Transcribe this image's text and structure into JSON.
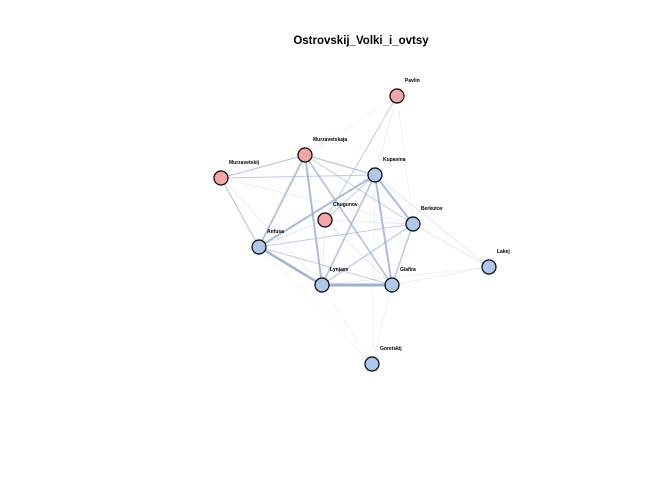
{
  "title": "Ostrovskij_Volki_i_ovtsy",
  "colors": {
    "female_node": "#f4a6a6",
    "male_node": "#adc8ea",
    "edge": "#9cb0d4",
    "edge_light": "#c8cfe0"
  },
  "nodes": [
    {
      "id": "Pavlin",
      "label": "Pavlin",
      "group": "female"
    },
    {
      "id": "Murzavetskaja",
      "label": "Murzavetskaja",
      "group": "female"
    },
    {
      "id": "Murzavetskij",
      "label": "Murzavetskij",
      "group": "female"
    },
    {
      "id": "Kupavina",
      "label": "Kupavina",
      "group": "male"
    },
    {
      "id": "Chugunov",
      "label": "Chugunov",
      "group": "female"
    },
    {
      "id": "Berkutov",
      "label": "Berkutov",
      "group": "male"
    },
    {
      "id": "Anfusa",
      "label": "Anfusa",
      "group": "male"
    },
    {
      "id": "Lakej",
      "label": "Lakej",
      "group": "male"
    },
    {
      "id": "Lynjaev",
      "label": "Lynjaev",
      "group": "male"
    },
    {
      "id": "Glafira",
      "label": "Glafira",
      "group": "male"
    },
    {
      "id": "Goretskij",
      "label": "Goretskij",
      "group": "male"
    }
  ],
  "edges": [
    {
      "source": "Lynjaev",
      "target": "Glafira",
      "weight": 3
    },
    {
      "source": "Anfusa",
      "target": "Lynjaev",
      "weight": 2.5
    },
    {
      "source": "Murzavetskaja",
      "target": "Lynjaev",
      "weight": 2
    },
    {
      "source": "Murzavetskaja",
      "target": "Glafira",
      "weight": 1.6
    },
    {
      "source": "Kupavina",
      "target": "Anfusa",
      "weight": 2
    },
    {
      "source": "Kupavina",
      "target": "Glafira",
      "weight": 2
    },
    {
      "source": "Kupavina",
      "target": "Lynjaev",
      "weight": 1.6
    },
    {
      "source": "Kupavina",
      "target": "Berkutov",
      "weight": 2
    },
    {
      "source": "Murzavetskaja",
      "target": "Anfusa",
      "weight": 1.8
    },
    {
      "source": "Murzavetskaja",
      "target": "Kupavina",
      "weight": 1.2
    },
    {
      "source": "Murzavetskij",
      "target": "Murzavetskaja",
      "weight": 1.2
    },
    {
      "source": "Murzavetskij",
      "target": "Kupavina",
      "weight": 1
    },
    {
      "source": "Murzavetskij",
      "target": "Anfusa",
      "weight": 1.2
    },
    {
      "source": "Murzavetskij",
      "target": "Lynjaev",
      "weight": 0.6
    },
    {
      "source": "Berkutov",
      "target": "Glafira",
      "weight": 1.4
    },
    {
      "source": "Berkutov",
      "target": "Lynjaev",
      "weight": 1.2
    },
    {
      "source": "Berkutov",
      "target": "Anfusa",
      "weight": 1
    },
    {
      "source": "Berkutov",
      "target": "Lakej",
      "weight": 0.8
    },
    {
      "source": "Kupavina",
      "target": "Lakej",
      "weight": 0.8
    },
    {
      "source": "Glafira",
      "target": "Lakej",
      "weight": 0.6
    },
    {
      "source": "Chugunov",
      "target": "Kupavina",
      "weight": 1
    },
    {
      "source": "Chugunov",
      "target": "Pavlin",
      "weight": 1
    },
    {
      "source": "Chugunov",
      "target": "Berkutov",
      "weight": 0.8
    },
    {
      "source": "Chugunov",
      "target": "Glafira",
      "weight": 0.8
    },
    {
      "source": "Chugunov",
      "target": "Anfusa",
      "weight": 0.8
    },
    {
      "source": "Chugunov",
      "target": "Lynjaev",
      "weight": 0.6
    },
    {
      "source": "Pavlin",
      "target": "Kupavina",
      "weight": 0.6
    },
    {
      "source": "Pavlin",
      "target": "Murzavetskaja",
      "weight": 0.5
    },
    {
      "source": "Pavlin",
      "target": "Berkutov",
      "weight": 0.5
    },
    {
      "source": "Murzavetskaja",
      "target": "Berkutov",
      "weight": 1
    },
    {
      "source": "Murzavetskij",
      "target": "Berkutov",
      "weight": 0.6
    },
    {
      "source": "Anfusa",
      "target": "Glafira",
      "weight": 1
    },
    {
      "source": "Goretskij",
      "target": "Lynjaev",
      "weight": 0.5
    },
    {
      "source": "Goretskij",
      "target": "Glafira",
      "weight": 0.5
    },
    {
      "source": "Goretskij",
      "target": "Kupavina",
      "weight": 0.4
    },
    {
      "source": "Goretskij",
      "target": "Anfusa",
      "weight": 0.4
    },
    {
      "source": "Lynjaev",
      "target": "Lakej",
      "weight": 0.5
    }
  ]
}
